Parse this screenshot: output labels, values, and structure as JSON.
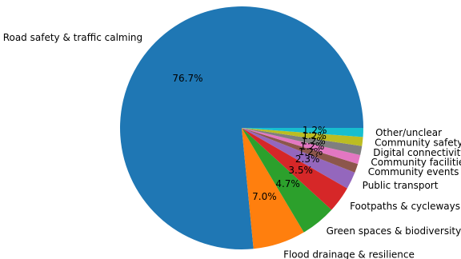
{
  "chart_data": {
    "type": "pie",
    "slices": [
      {
        "label": "Road safety & traffic calming",
        "value": 76.7,
        "pct_label": "76.7%",
        "color": "#1f77b4"
      },
      {
        "label": "Flood drainage & resilience",
        "value": 7.0,
        "pct_label": "7.0%",
        "color": "#ff7f0e"
      },
      {
        "label": "Green spaces & biodiversity",
        "value": 4.7,
        "pct_label": "4.7%",
        "color": "#2ca02c"
      },
      {
        "label": "Footpaths & cycleways",
        "value": 3.5,
        "pct_label": "3.5%",
        "color": "#d62728"
      },
      {
        "label": "Public transport",
        "value": 2.3,
        "pct_label": "2.3%",
        "color": "#9467bd"
      },
      {
        "label": "Community events",
        "value": 1.2,
        "pct_label": "1.2%",
        "color": "#8c564b"
      },
      {
        "label": "Community facilities",
        "value": 1.2,
        "pct_label": "1.2%",
        "color": "#e377c2"
      },
      {
        "label": "Digital connectivity",
        "value": 1.2,
        "pct_label": "1.2%",
        "color": "#7f7f7f"
      },
      {
        "label": "Community safety",
        "value": 1.2,
        "pct_label": "1.2%",
        "color": "#bcbd22"
      },
      {
        "label": "Other/unclear",
        "value": 1.2,
        "pct_label": "1.2%",
        "color": "#17becf"
      }
    ],
    "start_angle": 0,
    "direction": "counterclockwise"
  }
}
